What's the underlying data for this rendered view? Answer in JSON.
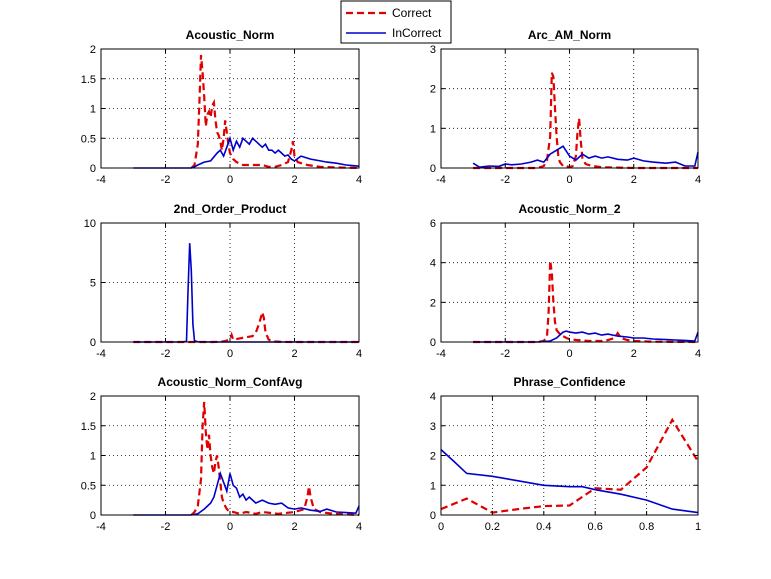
{
  "legend": {
    "entries": [
      {
        "label": "Correct",
        "color": "#e00000",
        "dash": true
      },
      {
        "label": "InCorrect",
        "color": "#0000cc",
        "dash": false
      }
    ]
  },
  "chart_data": [
    {
      "type": "line",
      "title": "Acoustic_Norm",
      "xlim": [
        -4,
        4
      ],
      "ylim": [
        0,
        2
      ],
      "xticks": [
        -4,
        -2,
        0,
        2,
        4
      ],
      "yticks": [
        0,
        0.5,
        1,
        1.5,
        2
      ],
      "grid": true,
      "series": [
        {
          "name": "Correct",
          "x": [
            -1.2,
            -1.1,
            -1.0,
            -0.95,
            -0.9,
            -0.85,
            -0.8,
            -0.75,
            -0.7,
            -0.65,
            -0.6,
            -0.55,
            -0.5,
            -0.45,
            -0.4,
            -0.35,
            -0.3,
            -0.25,
            -0.2,
            -0.15,
            -0.1,
            -0.05,
            0.0,
            0.1,
            0.2,
            0.4,
            0.6,
            0.8,
            1.0,
            1.2,
            1.4,
            1.6,
            1.8,
            1.9,
            1.95,
            2.0,
            2.1,
            2.4,
            2.8,
            3.2,
            4.0
          ],
          "y": [
            0,
            0.05,
            0.4,
            1.1,
            1.9,
            1.6,
            1.2,
            0.7,
            0.9,
            0.95,
            0.85,
            1.05,
            1.1,
            0.8,
            0.6,
            0.55,
            0.45,
            0.3,
            0.5,
            0.8,
            0.6,
            0.4,
            0.25,
            0.15,
            0.1,
            0.05,
            0.05,
            0.05,
            0.05,
            0.02,
            0.02,
            0.05,
            0.1,
            0.3,
            0.45,
            0.2,
            0.1,
            0.05,
            0.02,
            0.01,
            0
          ]
        },
        {
          "name": "InCorrect",
          "x": [
            -3.0,
            -2.0,
            -1.2,
            -1.1,
            -1.0,
            -0.8,
            -0.6,
            -0.4,
            -0.3,
            -0.2,
            -0.1,
            0.0,
            0.1,
            0.2,
            0.3,
            0.4,
            0.5,
            0.6,
            0.7,
            0.8,
            0.9,
            1.0,
            1.1,
            1.2,
            1.3,
            1.4,
            1.5,
            1.6,
            1.7,
            1.8,
            1.9,
            2.0,
            2.2,
            2.5,
            2.8,
            3.0,
            3.3,
            3.6,
            3.8,
            4.0
          ],
          "y": [
            0,
            0,
            0,
            0.02,
            0.05,
            0.1,
            0.12,
            0.25,
            0.3,
            0.2,
            0.35,
            0.5,
            0.3,
            0.45,
            0.35,
            0.5,
            0.45,
            0.4,
            0.5,
            0.45,
            0.4,
            0.35,
            0.4,
            0.3,
            0.3,
            0.25,
            0.3,
            0.25,
            0.2,
            0.22,
            0.15,
            0.12,
            0.2,
            0.15,
            0.12,
            0.1,
            0.08,
            0.05,
            0.04,
            0.03
          ]
        }
      ]
    },
    {
      "type": "line",
      "title": "Arc_AM_Norm",
      "xlim": [
        -4,
        4
      ],
      "ylim": [
        0,
        3
      ],
      "xticks": [
        -4,
        -2,
        0,
        2,
        4
      ],
      "yticks": [
        0,
        1,
        2,
        3
      ],
      "grid": true,
      "series": [
        {
          "name": "Correct",
          "x": [
            -3.0,
            -1.0,
            -0.8,
            -0.7,
            -0.6,
            -0.55,
            -0.5,
            -0.45,
            -0.4,
            -0.35,
            -0.3,
            -0.2,
            -0.1,
            0.0,
            0.1,
            0.2,
            0.25,
            0.3,
            0.35,
            0.4,
            0.5,
            0.7,
            1.0,
            1.5,
            2.0,
            4.0
          ],
          "y": [
            0,
            0,
            0.05,
            0.2,
            0.8,
            2.4,
            2.3,
            1.5,
            0.8,
            0.3,
            0.15,
            0.05,
            0.05,
            0.02,
            0.05,
            0.3,
            0.9,
            1.25,
            0.7,
            0.25,
            0.1,
            0.05,
            0.02,
            0.01,
            0,
            0
          ]
        },
        {
          "name": "InCorrect",
          "x": [
            -3.0,
            -2.8,
            -2.5,
            -2.2,
            -2.0,
            -1.8,
            -1.5,
            -1.2,
            -1.0,
            -0.8,
            -0.6,
            -0.4,
            -0.2,
            0.0,
            0.2,
            0.4,
            0.6,
            0.8,
            1.0,
            1.2,
            1.5,
            1.8,
            2.0,
            2.3,
            2.6,
            3.0,
            3.3,
            3.6,
            3.9,
            4.0
          ],
          "y": [
            0.12,
            0.02,
            0.05,
            0.04,
            0.1,
            0.08,
            0.1,
            0.15,
            0.2,
            0.15,
            0.35,
            0.45,
            0.55,
            0.3,
            0.2,
            0.35,
            0.25,
            0.3,
            0.25,
            0.28,
            0.22,
            0.2,
            0.25,
            0.18,
            0.15,
            0.12,
            0.15,
            0.05,
            0.05,
            0.4
          ]
        }
      ]
    },
    {
      "type": "line",
      "title": "2nd_Order_Product",
      "xlim": [
        -4,
        4
      ],
      "ylim": [
        0,
        10
      ],
      "xticks": [
        -4,
        -2,
        0,
        2,
        4
      ],
      "yticks": [
        0,
        5,
        10
      ],
      "grid": true,
      "series": [
        {
          "name": "Correct",
          "x": [
            -3.0,
            -1.0,
            -0.5,
            -0.2,
            0.0,
            0.05,
            0.1,
            0.3,
            0.5,
            0.7,
            0.8,
            0.9,
            1.0,
            1.05,
            1.1,
            1.2,
            1.3,
            1.6,
            2.0,
            4.0
          ],
          "y": [
            0,
            0,
            0,
            0.05,
            0.2,
            0.6,
            0.2,
            0.3,
            0.4,
            0.5,
            0.8,
            1.5,
            2.5,
            2.0,
            0.8,
            0.2,
            0.05,
            0.01,
            0,
            0
          ]
        },
        {
          "name": "InCorrect",
          "x": [
            -3.0,
            -1.5,
            -1.35,
            -1.3,
            -1.25,
            -1.2,
            -1.15,
            -1.1,
            -1.0,
            -0.5,
            0.0,
            1.0,
            4.0
          ],
          "y": [
            0,
            0,
            0.05,
            4.5,
            8.3,
            6.0,
            1.5,
            0.1,
            0.02,
            0,
            0,
            0,
            0
          ]
        }
      ]
    },
    {
      "type": "line",
      "title": "Acoustic_Norm_2",
      "xlim": [
        -4,
        4
      ],
      "ylim": [
        0,
        6
      ],
      "xticks": [
        -4,
        -2,
        0,
        2,
        4
      ],
      "yticks": [
        0,
        2,
        4,
        6
      ],
      "grid": true,
      "series": [
        {
          "name": "Correct",
          "x": [
            -3.0,
            -1.0,
            -0.8,
            -0.7,
            -0.65,
            -0.6,
            -0.55,
            -0.5,
            -0.45,
            -0.4,
            -0.3,
            -0.2,
            -0.1,
            0.0,
            0.2,
            0.4,
            0.6,
            0.8,
            1.0,
            1.2,
            1.4,
            1.5,
            1.6,
            1.8,
            2.0,
            2.5,
            3.0,
            4.0
          ],
          "y": [
            0,
            0,
            0.05,
            0.3,
            1.5,
            4.1,
            3.5,
            2.0,
            1.0,
            0.6,
            0.4,
            0.3,
            0.2,
            0.15,
            0.1,
            0.08,
            0.05,
            0.05,
            0.05,
            0.1,
            0.2,
            0.45,
            0.2,
            0.1,
            0.05,
            0.02,
            0.01,
            0
          ]
        },
        {
          "name": "InCorrect",
          "x": [
            -3.0,
            -1.0,
            -0.8,
            -0.6,
            -0.4,
            -0.2,
            -0.1,
            0.0,
            0.2,
            0.4,
            0.6,
            0.8,
            1.0,
            1.2,
            1.5,
            1.8,
            2.0,
            2.3,
            2.6,
            3.0,
            3.3,
            3.6,
            3.9,
            4.0
          ],
          "y": [
            0,
            0,
            0.02,
            0.05,
            0.2,
            0.5,
            0.55,
            0.5,
            0.45,
            0.5,
            0.4,
            0.45,
            0.35,
            0.4,
            0.3,
            0.25,
            0.2,
            0.2,
            0.15,
            0.12,
            0.1,
            0.08,
            0.05,
            0.5
          ]
        }
      ]
    },
    {
      "type": "line",
      "title": "Acoustic_Norm_ConfAvg",
      "xlim": [
        -4,
        4
      ],
      "ylim": [
        0,
        2
      ],
      "xticks": [
        -4,
        -2,
        0,
        2,
        4
      ],
      "yticks": [
        0,
        0.5,
        1,
        1.5,
        2
      ],
      "grid": true,
      "series": [
        {
          "name": "Correct",
          "x": [
            -1.2,
            -1.1,
            -1.0,
            -0.9,
            -0.85,
            -0.8,
            -0.75,
            -0.7,
            -0.65,
            -0.6,
            -0.55,
            -0.5,
            -0.45,
            -0.4,
            -0.35,
            -0.3,
            -0.25,
            -0.2,
            -0.1,
            0.0,
            0.1,
            0.3,
            0.5,
            0.8,
            1.0,
            1.5,
            2.0,
            2.3,
            2.4,
            2.45,
            2.5,
            2.6,
            2.8,
            3.2,
            4.0
          ],
          "y": [
            0,
            0.05,
            0.15,
            0.6,
            1.5,
            1.9,
            1.4,
            1.1,
            1.35,
            1.0,
            0.8,
            0.7,
            0.9,
            1.0,
            0.8,
            0.55,
            0.3,
            0.2,
            0.1,
            0.05,
            0.05,
            0.02,
            0.05,
            0.02,
            0.05,
            0.02,
            0.05,
            0.1,
            0.3,
            0.48,
            0.3,
            0.1,
            0.05,
            0.02,
            0
          ]
        },
        {
          "name": "InCorrect",
          "x": [
            -3.0,
            -1.5,
            -1.2,
            -1.0,
            -0.8,
            -0.6,
            -0.5,
            -0.4,
            -0.3,
            -0.2,
            -0.1,
            0.0,
            0.05,
            0.1,
            0.2,
            0.3,
            0.4,
            0.5,
            0.6,
            0.8,
            1.0,
            1.2,
            1.4,
            1.6,
            1.8,
            2.0,
            2.2,
            2.5,
            2.8,
            3.0,
            3.3,
            3.6,
            3.9,
            4.0
          ],
          "y": [
            0,
            0,
            0,
            0.02,
            0.1,
            0.2,
            0.3,
            0.5,
            0.7,
            0.55,
            0.4,
            0.7,
            0.6,
            0.5,
            0.45,
            0.3,
            0.35,
            0.25,
            0.3,
            0.2,
            0.25,
            0.2,
            0.18,
            0.2,
            0.12,
            0.1,
            0.12,
            0.08,
            0.06,
            0.1,
            0.05,
            0.04,
            0.03,
            0.15
          ]
        }
      ]
    },
    {
      "type": "line",
      "title": "Phrase_Confidence",
      "xlim": [
        0,
        1
      ],
      "ylim": [
        0,
        4
      ],
      "xticks": [
        0,
        0.2,
        0.4,
        0.6,
        0.8,
        1
      ],
      "yticks": [
        0,
        1,
        2,
        3,
        4
      ],
      "grid": true,
      "series": [
        {
          "name": "Correct",
          "x": [
            0.0,
            0.1,
            0.2,
            0.3,
            0.4,
            0.5,
            0.6,
            0.7,
            0.8,
            0.9,
            1.0
          ],
          "y": [
            0.2,
            0.55,
            0.08,
            0.2,
            0.3,
            0.32,
            0.9,
            0.85,
            1.6,
            3.2,
            1.8
          ]
        },
        {
          "name": "InCorrect",
          "x": [
            0.0,
            0.05,
            0.1,
            0.2,
            0.3,
            0.4,
            0.5,
            0.55,
            0.6,
            0.7,
            0.8,
            0.9,
            1.0
          ],
          "y": [
            2.2,
            1.8,
            1.4,
            1.3,
            1.15,
            1.0,
            0.95,
            0.95,
            0.85,
            0.7,
            0.5,
            0.2,
            0.08
          ]
        }
      ]
    }
  ]
}
